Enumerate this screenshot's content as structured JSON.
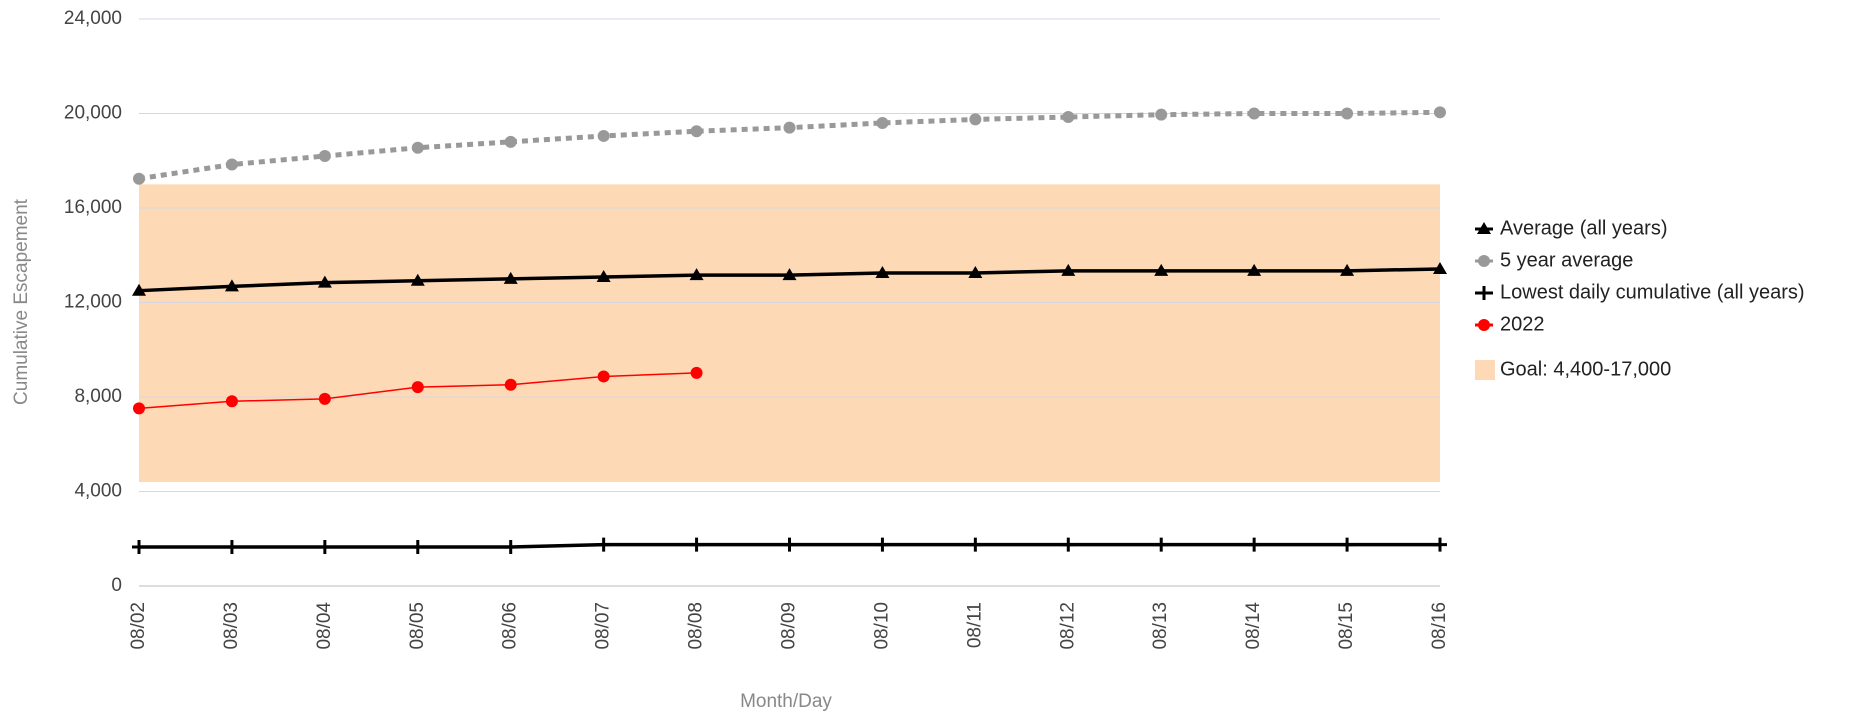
{
  "chart_data": {
    "type": "line",
    "x_label": "Month/Day",
    "y_label": "Cumulative Escapement",
    "categories": [
      "08/02",
      "08/03",
      "08/04",
      "08/05",
      "08/06",
      "08/07",
      "08/08",
      "08/09",
      "08/10",
      "08/11",
      "08/12",
      "08/13",
      "08/14",
      "08/15",
      "08/16"
    ],
    "ylim": [
      0,
      24000
    ],
    "yticks": [
      0,
      {
        "value": 4000,
        "label": "4,000"
      },
      {
        "value": 8000,
        "label": "8,000"
      },
      {
        "value": 12000,
        "label": "12,000"
      },
      {
        "value": 16000,
        "label": "16,000"
      },
      {
        "value": 20000,
        "label": "20,000"
      },
      {
        "value": 24000,
        "label": "24,000"
      }
    ],
    "grid": true,
    "legend": "right",
    "goal": {
      "label": "Goal: 4,400-17,000",
      "range": [
        4400,
        17000
      ],
      "color": "#fdd9b5"
    },
    "series": [
      {
        "name": "Average (all years)",
        "color": "#000000",
        "marker": "triangle",
        "line_style": "solid",
        "values": [
          12500,
          12680,
          12840,
          12920,
          13000,
          13080,
          13160,
          13160,
          13250,
          13250,
          13340,
          13340,
          13340,
          13340,
          13420
        ]
      },
      {
        "name": "5 year average",
        "color": "#999999",
        "marker": "circle",
        "line_style": "dotted",
        "values": [
          17240,
          17840,
          18200,
          18550,
          18800,
          19050,
          19250,
          19400,
          19600,
          19750,
          19850,
          19950,
          20000,
          20000,
          20050
        ]
      },
      {
        "name": "Lowest daily cumulative (all years)",
        "color": "#000000",
        "marker": "cross",
        "line_style": "solid",
        "values": [
          1650,
          1650,
          1650,
          1650,
          1650,
          1750,
          1750,
          1750,
          1750,
          1750,
          1750,
          1750,
          1750,
          1750,
          1750
        ]
      },
      {
        "name": "2022",
        "color": "#ff0000",
        "marker": "circle",
        "line_style": "thin",
        "values": [
          7520,
          7820,
          7920,
          8420,
          8520,
          8870,
          9020,
          null,
          null,
          null,
          null,
          null,
          null,
          null,
          null
        ]
      }
    ]
  }
}
